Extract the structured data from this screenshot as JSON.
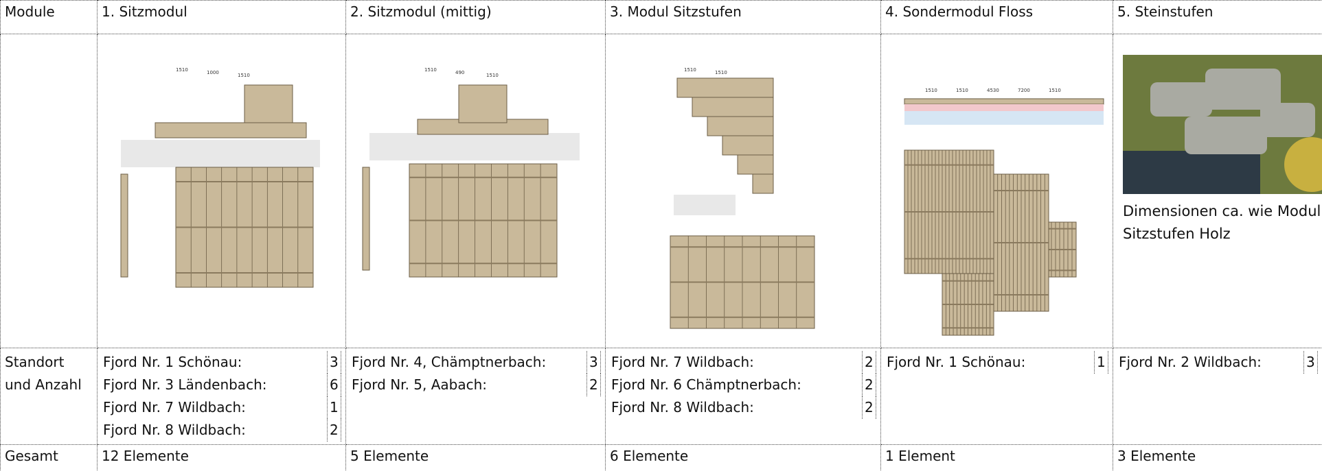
{
  "table": {
    "header": [
      "Module",
      "1. Sitzmodul",
      "2. Sitzmodul (mittig)",
      "3. Modul Sitzstufen",
      "4. Sondermodul Floss",
      "5. Steinstufen"
    ],
    "drawings": [
      {
        "labels": [
          "1510",
          "1000",
          "1510"
        ]
      },
      {
        "labels": [
          "1510",
          "490",
          "1510"
        ]
      },
      {
        "labels": [
          "1510",
          "1510"
        ]
      },
      {
        "labels": [
          "1510",
          "1510",
          "4530",
          "7200",
          "1510"
        ]
      },
      {
        "caption": "Dimensionen ca. wie Modul Sitzstufen Holz"
      }
    ],
    "location_label": "Standort und Anzahl",
    "locations": [
      [
        {
          "name": "Fjord Nr. 1 Schönau:",
          "count": 3
        },
        {
          "name": "Fjord Nr. 3 Ländenbach:",
          "count": 6
        },
        {
          "name": "Fjord Nr. 7 Wildbach:",
          "count": 1
        },
        {
          "name": "Fjord Nr. 8 Wildbach:",
          "count": 2
        }
      ],
      [
        {
          "name": "Fjord Nr. 4, Chämptnerbach:",
          "count": 3
        },
        {
          "name": "Fjord Nr. 5, Aabach:",
          "count": 2
        }
      ],
      [
        {
          "name": "Fjord Nr. 7 Wildbach:",
          "count": 2
        },
        {
          "name": "Fjord Nr. 6 Chämptnerbach:",
          "count": 2
        },
        {
          "name": "Fjord Nr. 8 Wildbach:",
          "count": 2
        }
      ],
      [
        {
          "name": "Fjord Nr. 1 Schönau:",
          "count": 1
        }
      ],
      [
        {
          "name": "Fjord Nr. 2 Wildbach:",
          "count": 3
        }
      ]
    ],
    "total_label": "Gesamt",
    "totals": [
      "12 Elemente",
      "5 Elemente",
      "6 Elemente",
      "1 Element",
      "3 Elemente"
    ]
  }
}
